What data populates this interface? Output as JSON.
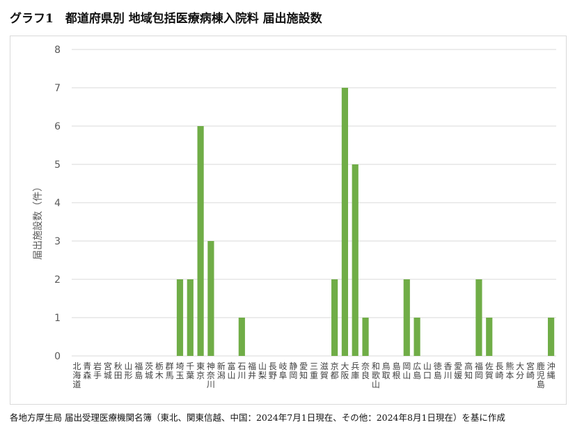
{
  "title": "グラフ1　都道府県別 地域包括医療病棟入院料 届出施設数",
  "source_note": "各地方厚生局 届出受理医療機関名簿（東北、関東信越、中国：2024年7月1日現在、その他：2024年8月1日現在）を基に作成",
  "colors": {
    "bar": "#70ad47",
    "grid": "#d9d9d9",
    "tick_text": "#595959"
  },
  "chart_data": {
    "type": "bar",
    "title": "グラフ1　都道府県別 地域包括医療病棟入院料 届出施設数",
    "xlabel": "",
    "ylabel": "届出施設数（件）",
    "ylim": [
      0,
      8
    ],
    "yticks": [
      0,
      1,
      2,
      3,
      4,
      5,
      6,
      7,
      8
    ],
    "grid": true,
    "legend": "none",
    "categories": [
      "北海道",
      "青森",
      "岩手",
      "宮城",
      "秋田",
      "山形",
      "福島",
      "茨城",
      "栃木",
      "群馬",
      "埼玉",
      "千葉",
      "東京",
      "神奈川",
      "新潟",
      "富山",
      "石川",
      "福井",
      "山梨",
      "長野",
      "岐阜",
      "静岡",
      "愛知",
      "三重",
      "滋賀",
      "京都",
      "大阪",
      "兵庫",
      "奈良",
      "和歌山",
      "鳥取",
      "島根",
      "岡山",
      "広島",
      "山口",
      "徳島",
      "香川",
      "愛媛",
      "高知",
      "福岡",
      "佐賀",
      "長崎",
      "熊本",
      "大分",
      "宮崎",
      "鹿児島",
      "沖縄"
    ],
    "values": [
      0,
      0,
      0,
      0,
      0,
      0,
      0,
      0,
      0,
      0,
      2,
      2,
      6,
      3,
      0,
      0,
      1,
      0,
      0,
      0,
      0,
      0,
      0,
      0,
      0,
      2,
      7,
      5,
      1,
      0,
      0,
      0,
      2,
      1,
      0,
      0,
      0,
      0,
      0,
      2,
      1,
      0,
      0,
      0,
      0,
      0,
      1
    ]
  }
}
